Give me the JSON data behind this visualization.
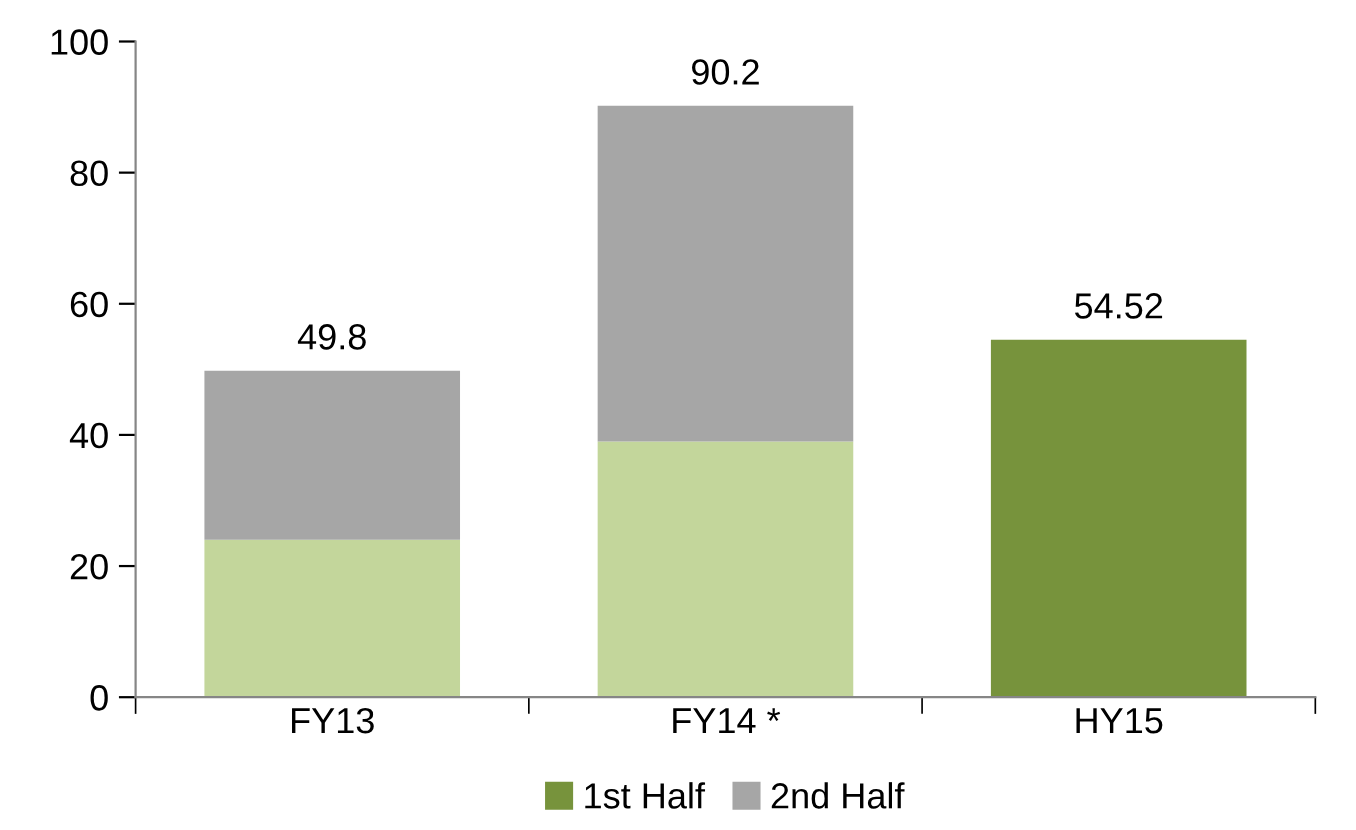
{
  "chart_data": {
    "type": "bar",
    "stacked": true,
    "categories": [
      "FY13",
      "FY14 *",
      "HY15"
    ],
    "series": [
      {
        "name": "1st Half",
        "color": "#77933c",
        "colors": [
          "#c3d69b",
          "#c3d69b",
          "#77933c"
        ],
        "values": [
          24,
          39,
          54.52
        ]
      },
      {
        "name": "2nd Half",
        "color": "#a6a6a6",
        "values": [
          25.8,
          51.2,
          null
        ]
      }
    ],
    "totals": [
      "49.8",
      "90.2",
      "54.52"
    ],
    "ylim": [
      0,
      100
    ],
    "yticks": [
      0,
      20,
      40,
      60,
      80,
      100
    ],
    "grid": false,
    "legend": "bottom"
  }
}
